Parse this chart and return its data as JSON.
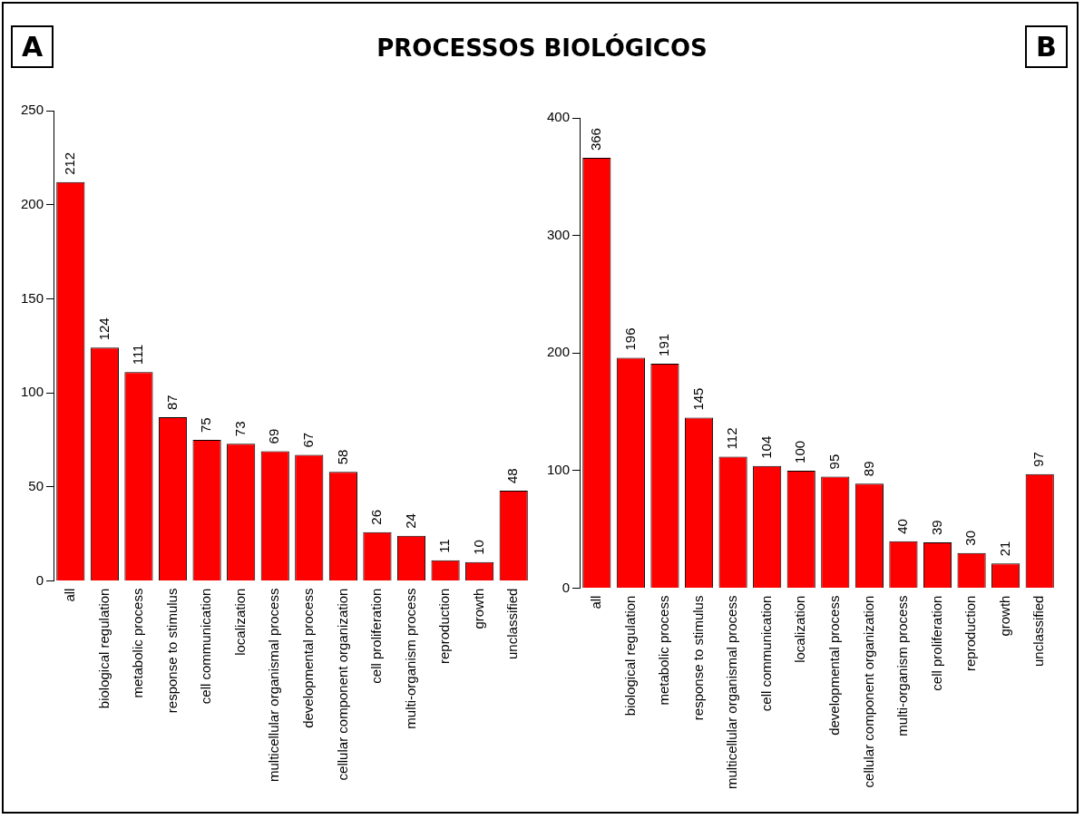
{
  "chart_data": [
    {
      "type": "bar",
      "title": "PROCESSOS BIOLÓGICOS",
      "annotations": [
        "A"
      ],
      "categories": [
        "all",
        "biological regulation",
        "metabolic process",
        "response to stimulus",
        "cell communication",
        "localization",
        "multicellular organismal process",
        "developmental process",
        "cellular component organization",
        "cell proliferation",
        "multi-organism process",
        "reproduction",
        "growth",
        "unclassified"
      ],
      "values": [
        212,
        124,
        111,
        87,
        75,
        73,
        69,
        67,
        58,
        26,
        24,
        11,
        10,
        48
      ],
      "color": "#ff0000",
      "ylim": [
        0,
        250
      ],
      "yticks": [
        0,
        50,
        100,
        150,
        200,
        250
      ],
      "grid": false,
      "legend": false,
      "data_labels": true
    },
    {
      "type": "bar",
      "annotations": [
        "B"
      ],
      "categories": [
        "all",
        "biological regulation",
        "metabolic process",
        "response to stimulus",
        "multicellular organismal process",
        "cell communication",
        "localization",
        "developmental process",
        "cellular component organization",
        "multi-organism process",
        "cell proliferation",
        "reproduction",
        "growth",
        "unclassified"
      ],
      "values": [
        366,
        196,
        191,
        145,
        112,
        104,
        100,
        95,
        89,
        40,
        39,
        30,
        21,
        97
      ],
      "color": "#ff0000",
      "ylim": [
        0,
        400
      ],
      "yticks": [
        0,
        100,
        200,
        300,
        400
      ],
      "grid": false,
      "legend": false,
      "data_labels": true
    }
  ]
}
